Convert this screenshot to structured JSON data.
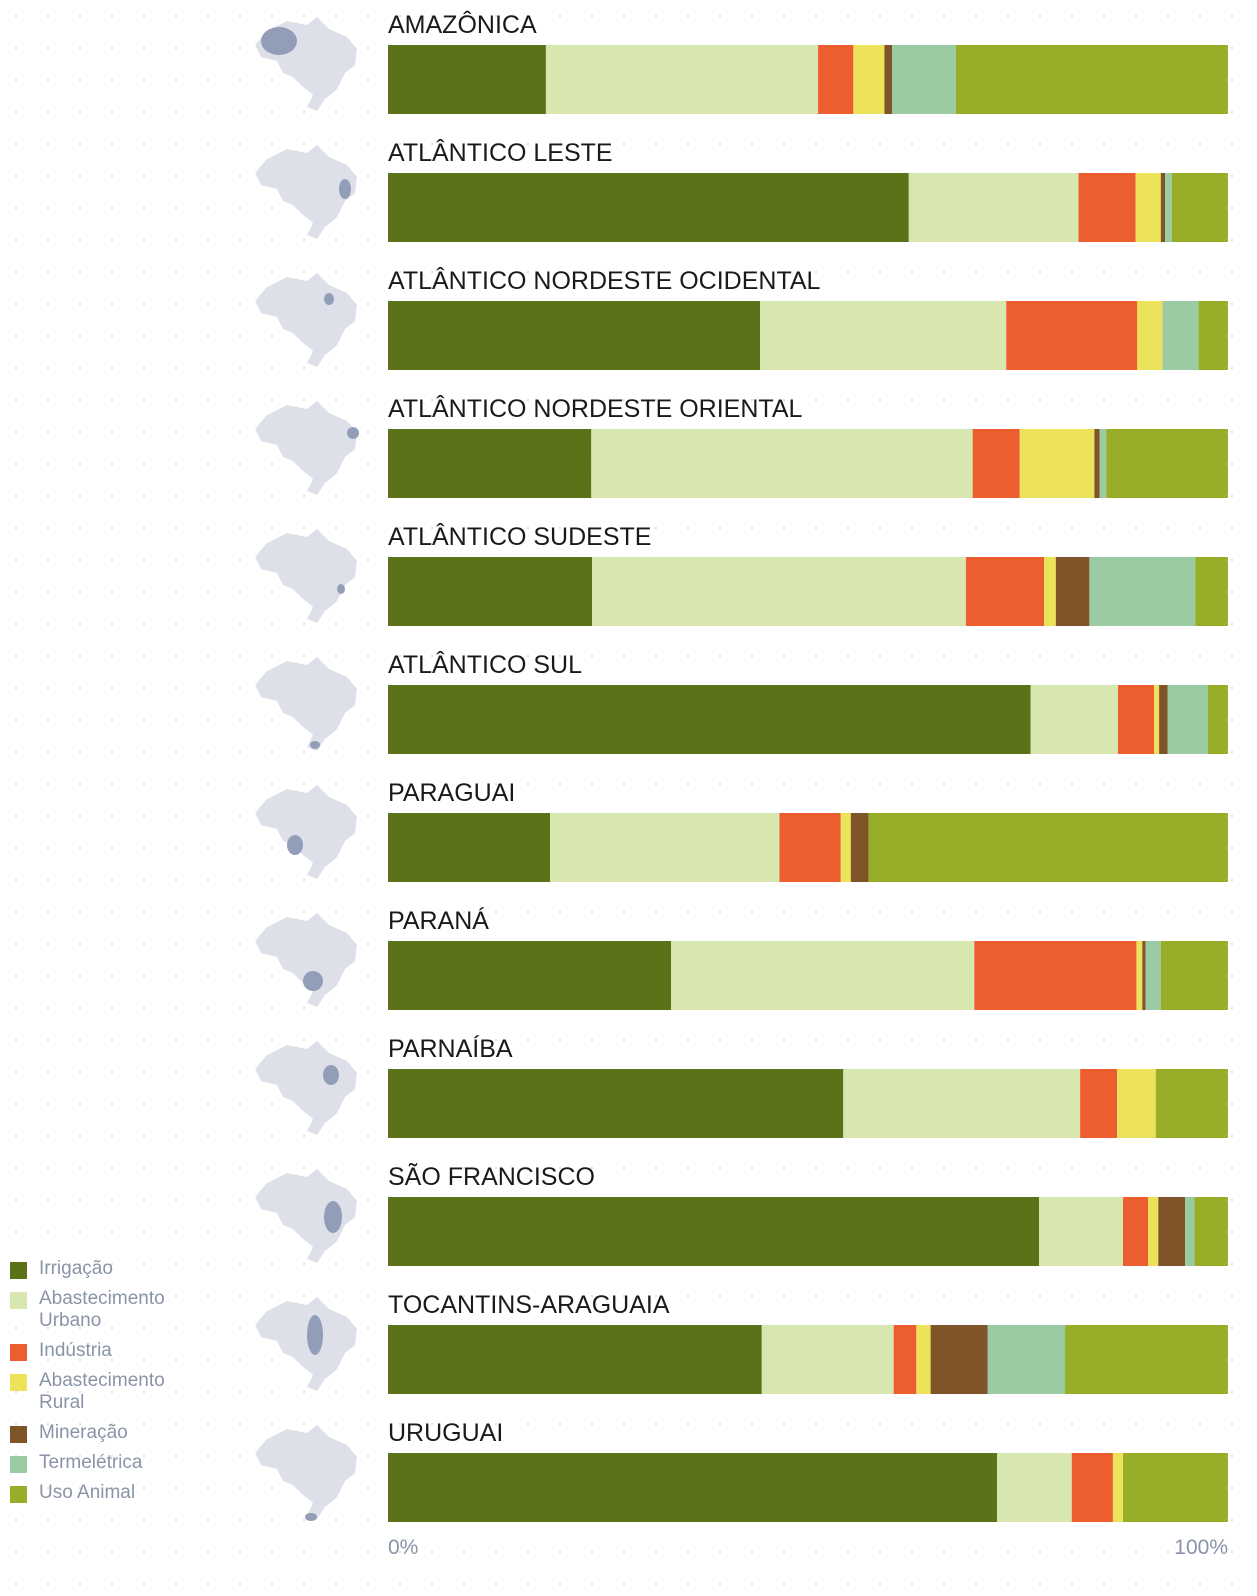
{
  "chart_data": {
    "type": "bar",
    "orientation": "horizontal",
    "stacked": true,
    "categories": [
      "AMAZÔNICA",
      "ATLÂNTICO LESTE",
      "ATLÂNTICO NORDESTE OCIDENTAL",
      "ATLÂNTICO NORDESTE ORIENTAL",
      "ATLÂNTICO SUDESTE",
      "ATLÂNTICO SUL",
      "PARAGUAI",
      "PARANÁ",
      "PARNAÍBA",
      "SÃO FRANCISCO",
      "TOCANTINS-ARAGUAIA",
      "URUGUAI"
    ],
    "series": [
      {
        "name": "Irrigação",
        "color": "#5c7218",
        "values": [
          18.8,
          62.0,
          44.3,
          24.2,
          24.3,
          76.5,
          19.3,
          33.7,
          54.2,
          77.5,
          44.5,
          72.5
        ]
      },
      {
        "name": "Abastecimento Urbano",
        "color": "#d8e6b0",
        "values": [
          32.4,
          20.2,
          29.3,
          45.4,
          44.5,
          10.4,
          27.3,
          36.1,
          28.2,
          10.0,
          15.7,
          8.9
        ]
      },
      {
        "name": "Indústria",
        "color": "#ec5e30",
        "values": [
          4.2,
          6.8,
          15.6,
          5.6,
          9.3,
          4.3,
          7.3,
          19.3,
          4.4,
          3.0,
          2.7,
          4.9
        ]
      },
      {
        "name": "Abastecimento Rural",
        "color": "#ece35a",
        "values": [
          3.7,
          3.0,
          3.0,
          8.9,
          1.4,
          0.6,
          1.2,
          0.7,
          4.6,
          1.2,
          1.7,
          1.2
        ]
      },
      {
        "name": "Mineração",
        "color": "#7f5428",
        "values": [
          0.9,
          0.5,
          0,
          0.6,
          4.0,
          1.0,
          2.1,
          0.4,
          0,
          3.2,
          6.8,
          0
        ]
      },
      {
        "name": "Termelétrica",
        "color": "#9acba2",
        "values": [
          7.6,
          0.8,
          4.3,
          0.8,
          12.6,
          4.8,
          0,
          1.8,
          0,
          1.1,
          9.2,
          0
        ]
      },
      {
        "name": "Uso Animal",
        "color": "#98ae28",
        "values": [
          32.4,
          6.7,
          3.5,
          14.5,
          3.9,
          2.4,
          42.8,
          8.0,
          8.6,
          4.0,
          19.4,
          12.5
        ]
      }
    ],
    "xlim": [
      0,
      100
    ],
    "xticks": [
      {
        "value": 0,
        "label": "0%"
      },
      {
        "value": 100,
        "label": "100%"
      }
    ]
  }
}
